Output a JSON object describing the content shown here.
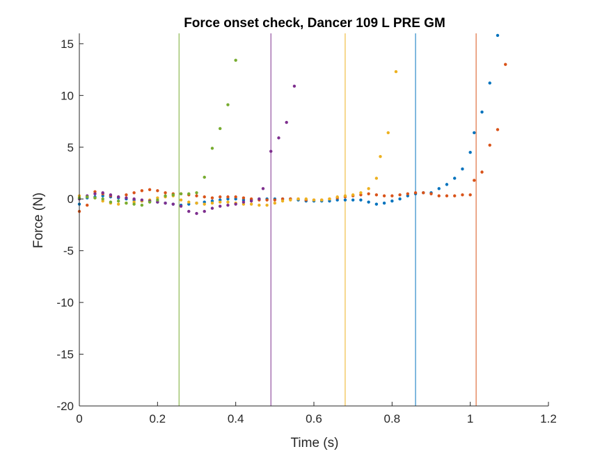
{
  "chart_data": {
    "type": "scatter",
    "title": "Force onset check, Dancer 109 L PRE GM",
    "xlabel": "Time (s)",
    "ylabel": "Force (N)",
    "xlim": [
      0,
      1.2
    ],
    "ylim": [
      -20,
      16
    ],
    "xticks": [
      0,
      0.2,
      0.4,
      0.6,
      0.8,
      1,
      1.2
    ],
    "xtick_labels": [
      "0",
      "0.2",
      "0.4",
      "0.6",
      "0.8",
      "1",
      "1.2"
    ],
    "yticks": [
      -20,
      -15,
      -10,
      -5,
      0,
      5,
      10,
      15
    ],
    "ytick_labels": [
      "-20",
      "-15",
      "-10",
      "-5",
      "0",
      "5",
      "10",
      "15"
    ],
    "grid": false,
    "legend": "none",
    "series": [
      {
        "color": "#0072BD",
        "onset": 0.86,
        "points": [
          [
            0.0,
            -0.5
          ],
          [
            0.02,
            0.1
          ],
          [
            0.04,
            0.2
          ],
          [
            0.06,
            0.3
          ],
          [
            0.08,
            0.2
          ],
          [
            0.1,
            0.1
          ],
          [
            0.12,
            0.0
          ],
          [
            0.14,
            -0.1
          ],
          [
            0.16,
            -0.2
          ],
          [
            0.18,
            -0.2
          ],
          [
            0.2,
            -0.3
          ],
          [
            0.22,
            -0.4
          ],
          [
            0.24,
            -0.5
          ],
          [
            0.26,
            -0.6
          ],
          [
            0.28,
            -0.5
          ],
          [
            0.3,
            -0.4
          ],
          [
            0.32,
            -0.3
          ],
          [
            0.34,
            -0.2
          ],
          [
            0.36,
            -0.1
          ],
          [
            0.38,
            0.0
          ],
          [
            0.4,
            0.0
          ],
          [
            0.42,
            -0.1
          ],
          [
            0.44,
            -0.1
          ],
          [
            0.46,
            0.0
          ],
          [
            0.48,
            0.0
          ],
          [
            0.5,
            0.0
          ],
          [
            0.52,
            0.0
          ],
          [
            0.54,
            0.0
          ],
          [
            0.56,
            -0.1
          ],
          [
            0.58,
            -0.2
          ],
          [
            0.6,
            -0.2
          ],
          [
            0.62,
            -0.2
          ],
          [
            0.64,
            -0.2
          ],
          [
            0.66,
            -0.1
          ],
          [
            0.68,
            -0.1
          ],
          [
            0.7,
            -0.1
          ],
          [
            0.72,
            -0.1
          ],
          [
            0.74,
            -0.3
          ],
          [
            0.76,
            -0.5
          ],
          [
            0.78,
            -0.4
          ],
          [
            0.8,
            -0.2
          ],
          [
            0.82,
            0.0
          ],
          [
            0.84,
            0.3
          ],
          [
            0.86,
            0.5
          ],
          [
            0.88,
            0.6
          ],
          [
            0.9,
            0.6
          ],
          [
            0.92,
            1.0
          ],
          [
            0.94,
            1.4
          ],
          [
            0.96,
            2.0
          ],
          [
            0.98,
            2.9
          ],
          [
            1.0,
            4.5
          ],
          [
            1.01,
            6.4
          ],
          [
            1.03,
            8.4
          ],
          [
            1.05,
            11.2
          ],
          [
            1.07,
            15.8
          ]
        ]
      },
      {
        "color": "#D95319",
        "onset": 1.015,
        "points": [
          [
            0.0,
            -1.2
          ],
          [
            0.02,
            -0.6
          ],
          [
            0.04,
            0.7
          ],
          [
            0.06,
            0.5
          ],
          [
            0.08,
            0.3
          ],
          [
            0.1,
            0.2
          ],
          [
            0.12,
            0.4
          ],
          [
            0.14,
            0.6
          ],
          [
            0.16,
            0.8
          ],
          [
            0.18,
            0.9
          ],
          [
            0.2,
            0.8
          ],
          [
            0.22,
            0.6
          ],
          [
            0.24,
            0.5
          ],
          [
            0.26,
            0.5
          ],
          [
            0.28,
            0.4
          ],
          [
            0.3,
            0.3
          ],
          [
            0.32,
            0.2
          ],
          [
            0.34,
            0.1
          ],
          [
            0.36,
            0.2
          ],
          [
            0.38,
            0.2
          ],
          [
            0.4,
            0.2
          ],
          [
            0.42,
            0.1
          ],
          [
            0.44,
            0.0
          ],
          [
            0.46,
            -0.1
          ],
          [
            0.48,
            -0.1
          ],
          [
            0.5,
            -0.1
          ],
          [
            0.52,
            0.0
          ],
          [
            0.54,
            0.0
          ],
          [
            0.56,
            0.0
          ],
          [
            0.58,
            -0.1
          ],
          [
            0.6,
            -0.1
          ],
          [
            0.62,
            -0.1
          ],
          [
            0.64,
            0.0
          ],
          [
            0.66,
            0.1
          ],
          [
            0.68,
            0.2
          ],
          [
            0.7,
            0.3
          ],
          [
            0.72,
            0.4
          ],
          [
            0.74,
            0.5
          ],
          [
            0.76,
            0.4
          ],
          [
            0.78,
            0.3
          ],
          [
            0.8,
            0.3
          ],
          [
            0.82,
            0.4
          ],
          [
            0.84,
            0.5
          ],
          [
            0.86,
            0.6
          ],
          [
            0.88,
            0.6
          ],
          [
            0.9,
            0.5
          ],
          [
            0.92,
            0.3
          ],
          [
            0.94,
            0.3
          ],
          [
            0.96,
            0.3
          ],
          [
            0.98,
            0.4
          ],
          [
            1.0,
            0.4
          ],
          [
            1.01,
            1.8
          ],
          [
            1.03,
            2.6
          ],
          [
            1.05,
            5.2
          ],
          [
            1.07,
            6.7
          ],
          [
            1.09,
            13.0
          ]
        ]
      },
      {
        "color": "#EDB120",
        "onset": 0.68,
        "points": [
          [
            0.0,
            0.3
          ],
          [
            0.02,
            0.2
          ],
          [
            0.04,
            0.1
          ],
          [
            0.06,
            -0.2
          ],
          [
            0.08,
            -0.4
          ],
          [
            0.1,
            -0.5
          ],
          [
            0.12,
            -0.4
          ],
          [
            0.14,
            -0.3
          ],
          [
            0.16,
            -0.2
          ],
          [
            0.18,
            -0.1
          ],
          [
            0.2,
            0.1
          ],
          [
            0.22,
            0.2
          ],
          [
            0.24,
            0.3
          ],
          [
            0.26,
            -0.1
          ],
          [
            0.28,
            -0.3
          ],
          [
            0.3,
            -0.4
          ],
          [
            0.32,
            -0.5
          ],
          [
            0.34,
            -0.4
          ],
          [
            0.36,
            -0.3
          ],
          [
            0.38,
            -0.3
          ],
          [
            0.4,
            -0.4
          ],
          [
            0.42,
            -0.5
          ],
          [
            0.44,
            -0.5
          ],
          [
            0.46,
            -0.6
          ],
          [
            0.48,
            -0.6
          ],
          [
            0.5,
            -0.4
          ],
          [
            0.52,
            -0.2
          ],
          [
            0.54,
            -0.1
          ],
          [
            0.56,
            0.0
          ],
          [
            0.58,
            0.0
          ],
          [
            0.6,
            -0.1
          ],
          [
            0.62,
            -0.1
          ],
          [
            0.64,
            0.0
          ],
          [
            0.66,
            0.2
          ],
          [
            0.68,
            0.3
          ],
          [
            0.7,
            0.4
          ],
          [
            0.72,
            0.6
          ],
          [
            0.74,
            1.0
          ],
          [
            0.76,
            2.0
          ],
          [
            0.77,
            4.1
          ],
          [
            0.79,
            6.4
          ],
          [
            0.81,
            12.3
          ]
        ]
      },
      {
        "color": "#7E2F8E",
        "onset": 0.49,
        "points": [
          [
            0.0,
            0.0
          ],
          [
            0.02,
            0.3
          ],
          [
            0.04,
            0.5
          ],
          [
            0.06,
            0.6
          ],
          [
            0.08,
            0.4
          ],
          [
            0.1,
            0.2
          ],
          [
            0.12,
            0.1
          ],
          [
            0.14,
            0.0
          ],
          [
            0.16,
            -0.1
          ],
          [
            0.18,
            -0.2
          ],
          [
            0.2,
            -0.3
          ],
          [
            0.22,
            -0.4
          ],
          [
            0.24,
            -0.5
          ],
          [
            0.26,
            -0.7
          ],
          [
            0.28,
            -1.2
          ],
          [
            0.3,
            -1.4
          ],
          [
            0.32,
            -1.2
          ],
          [
            0.34,
            -0.9
          ],
          [
            0.36,
            -0.7
          ],
          [
            0.38,
            -0.6
          ],
          [
            0.4,
            -0.5
          ],
          [
            0.42,
            -0.3
          ],
          [
            0.44,
            -0.2
          ],
          [
            0.46,
            0.0
          ],
          [
            0.47,
            1.0
          ],
          [
            0.49,
            4.6
          ],
          [
            0.51,
            5.9
          ],
          [
            0.53,
            7.4
          ],
          [
            0.55,
            10.9
          ]
        ]
      },
      {
        "color": "#77AC30",
        "onset": 0.255,
        "points": [
          [
            0.0,
            0.1
          ],
          [
            0.02,
            0.2
          ],
          [
            0.04,
            0.1
          ],
          [
            0.06,
            0.0
          ],
          [
            0.08,
            -0.3
          ],
          [
            0.1,
            -0.2
          ],
          [
            0.12,
            -0.4
          ],
          [
            0.14,
            -0.5
          ],
          [
            0.16,
            -0.6
          ],
          [
            0.18,
            -0.3
          ],
          [
            0.2,
            -0.1
          ],
          [
            0.22,
            0.3
          ],
          [
            0.24,
            0.4
          ],
          [
            0.26,
            0.5
          ],
          [
            0.28,
            0.5
          ],
          [
            0.3,
            0.6
          ],
          [
            0.32,
            2.1
          ],
          [
            0.34,
            4.9
          ],
          [
            0.36,
            6.8
          ],
          [
            0.38,
            9.1
          ],
          [
            0.4,
            13.4
          ]
        ]
      }
    ]
  }
}
